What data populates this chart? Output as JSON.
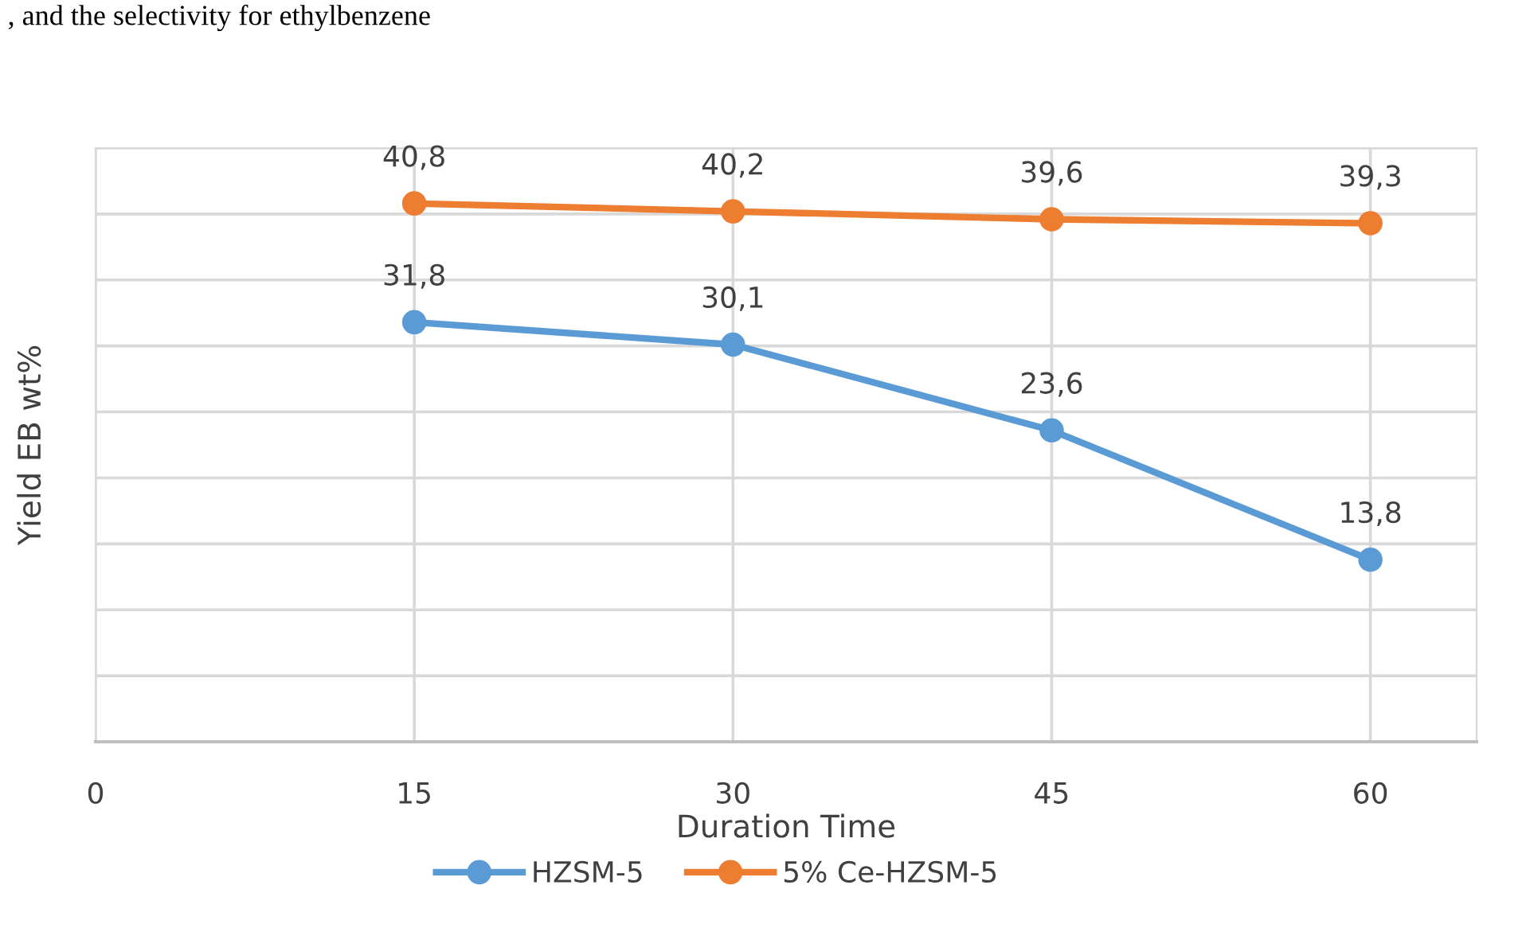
{
  "chart_data": {
    "type": "line",
    "xlabel": "Duration Time",
    "ylabel": "Yield EB wt%",
    "annotations": [
      ", and the selectivity for ethylbenzene"
    ],
    "x": [
      15,
      30,
      45,
      60
    ],
    "series": [
      {
        "name": "HZSM-5",
        "color": "#5b9bd5",
        "values": [
          31.8,
          30.1,
          23.6,
          13.8
        ],
        "value_labels": [
          "31,8",
          "30,1",
          "23,6",
          "13,8"
        ]
      },
      {
        "name": "5% Ce-HZSM-5",
        "color": "#ed7d31",
        "values": [
          40.8,
          40.2,
          39.6,
          39.3
        ],
        "value_labels": [
          "40,8",
          "40,2",
          "39,6",
          "39,3"
        ]
      }
    ],
    "xlim": [
      0,
      65
    ],
    "xticks": [
      0,
      15,
      30,
      45,
      60
    ],
    "ylim": [
      0,
      45
    ],
    "yticks": [
      {
        "value": 0,
        "label": null
      },
      {
        "value": 5,
        "label": null
      },
      {
        "value": 10,
        "label": null
      },
      {
        "value": 15,
        "label": null
      },
      {
        "value": 20,
        "label": null
      },
      {
        "value": 25,
        "label": null
      },
      {
        "value": 30,
        "label": null
      },
      {
        "value": 35,
        "label": null
      },
      {
        "value": 40,
        "label": null
      },
      {
        "value": 45,
        "label": null
      }
    ],
    "tick_labels": "x",
    "grid": true,
    "legend": "bottom",
    "marker": "circle",
    "line_style": "solid"
  }
}
